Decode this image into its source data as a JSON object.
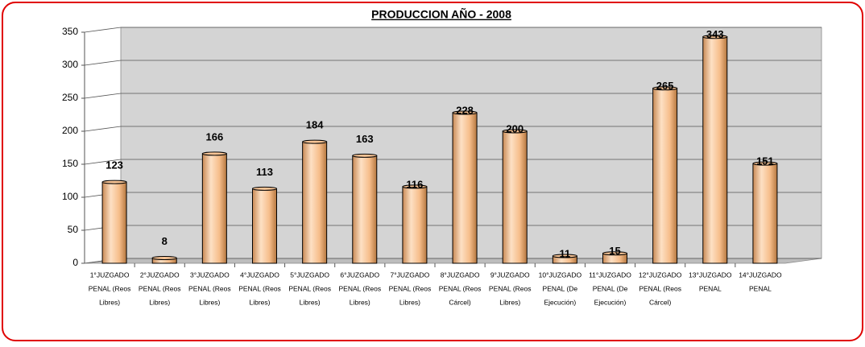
{
  "chart_data": {
    "type": "bar",
    "title": "PRODUCCION AÑO - 2008",
    "categories": [
      [
        "1°JUZGADO",
        "PENAL (Reos",
        "Libres)"
      ],
      [
        "2°JUZGADO",
        "PENAL (Reos",
        "Libres)"
      ],
      [
        "3°JUZGADO",
        "PENAL (Reos",
        "Libres)"
      ],
      [
        "4°JUZGADO",
        "PENAL (Reos",
        "Libres)"
      ],
      [
        "5°JUZGADO",
        "PENAL (Reos",
        "Libres)"
      ],
      [
        "6°JUZGADO",
        "PENAL (Reos",
        "Libres)"
      ],
      [
        "7°JUZGADO",
        "PENAL (Reos",
        "Libres)"
      ],
      [
        "8°JUZGADO",
        "PENAL (Reos",
        "Cárcel)"
      ],
      [
        "9°JUZGADO",
        "PENAL (Reos",
        "Libres)"
      ],
      [
        "10°JUZGADO",
        "PENAL (De",
        "Ejecución)"
      ],
      [
        "11°JUZGADO",
        "PENAL (De",
        "Ejecución)"
      ],
      [
        "12°JUZGADO",
        "PENAL (Reos",
        "Cárcel)"
      ],
      [
        "13°JUZGADO",
        "PENAL"
      ],
      [
        "14°JUZGADO",
        "PENAL"
      ]
    ],
    "values": [
      123,
      8,
      166,
      113,
      184,
      163,
      116,
      228,
      200,
      11,
      15,
      265,
      343,
      151
    ],
    "color": "#f8c495",
    "ylim": [
      0,
      350
    ],
    "yticks": [
      0,
      50,
      100,
      150,
      200,
      250,
      300,
      350
    ],
    "grid": true
  }
}
